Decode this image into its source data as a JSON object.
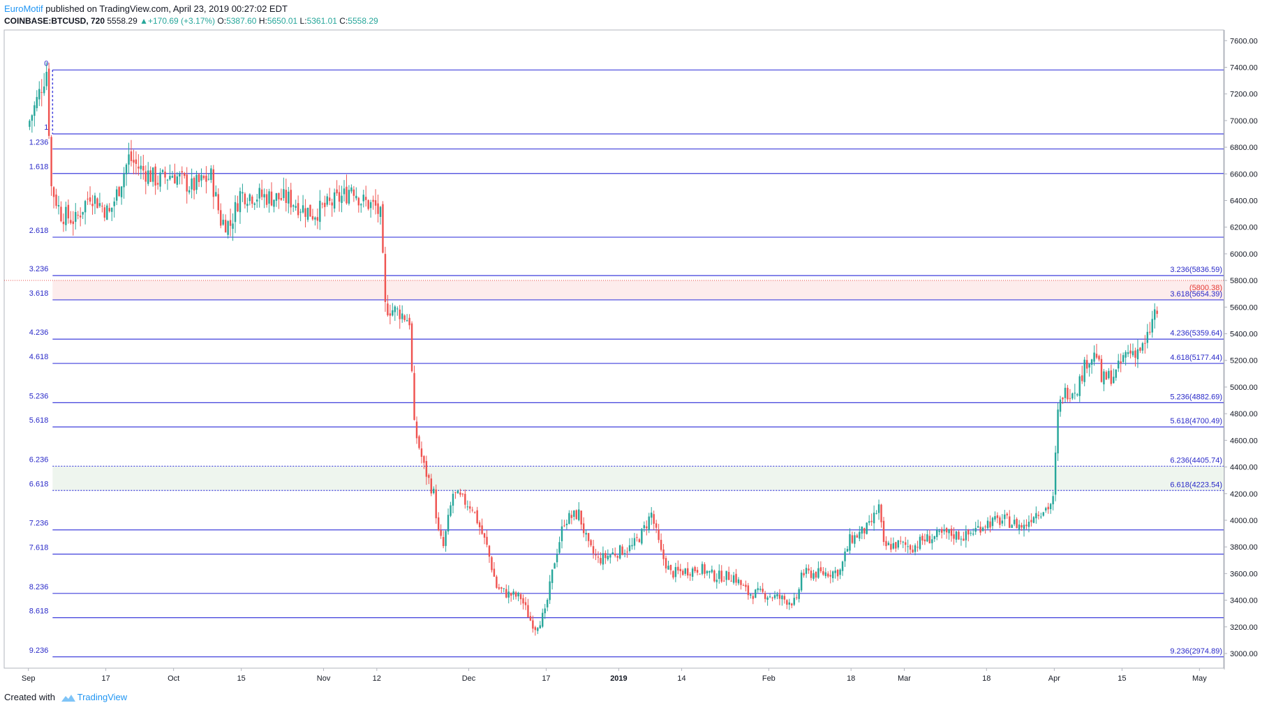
{
  "header": {
    "author": "EuroMotif",
    "published_text": " published on TradingView.com, April 23, 2019 00:27:02 EDT"
  },
  "ohlc": {
    "symbol": "COINBASE:BTCUSD, 720",
    "last": "5558.29",
    "change": "▲+170.69 (+3.17%)",
    "o_label": "O:",
    "o_val": "5387.60",
    "h_label": "H:",
    "h_val": "5650.01",
    "l_label": "L:",
    "l_val": "5361.01",
    "c_label": "C:",
    "c_val": "5558.29"
  },
  "footer": {
    "created_with": "Created with",
    "brand": "TradingView"
  },
  "colors": {
    "fib_line": "#3f3fdc",
    "fib_text": "#2929c8",
    "up": "#26a69a",
    "down": "#ef5350",
    "pink_zone": "#fdecec",
    "green_zone": "#eef5ee",
    "price_marker": "#e53935"
  },
  "chart_data": {
    "type": "candlestick",
    "title": "COINBASE:BTCUSD, 720",
    "y_axis": {
      "min": 2900,
      "max": 7600,
      "side": "right",
      "ticks": [
        3000,
        3200,
        3400,
        3600,
        3800,
        4000,
        4200,
        4400,
        4600,
        4800,
        5000,
        5200,
        5400,
        5600,
        5800,
        6000,
        6200,
        6400,
        6600,
        6800,
        7000,
        7200,
        7400,
        7600
      ]
    },
    "x_axis": {
      "start": "2018-09-01",
      "end": "2019-05-06",
      "ticks": [
        {
          "label": "Sep",
          "date": "2018-09-01"
        },
        {
          "label": "17",
          "date": "2018-09-17"
        },
        {
          "label": "Oct",
          "date": "2018-10-01"
        },
        {
          "label": "15",
          "date": "2018-10-15"
        },
        {
          "label": "Nov",
          "date": "2018-11-01"
        },
        {
          "label": "12",
          "date": "2018-11-12"
        },
        {
          "label": "Dec",
          "date": "2018-12-01"
        },
        {
          "label": "17",
          "date": "2018-12-17"
        },
        {
          "label": "2019",
          "date": "2019-01-01",
          "bold": true
        },
        {
          "label": "14",
          "date": "2019-01-14"
        },
        {
          "label": "Feb",
          "date": "2019-02-01"
        },
        {
          "label": "18",
          "date": "2019-02-18"
        },
        {
          "label": "Mar",
          "date": "2019-03-01"
        },
        {
          "label": "18",
          "date": "2019-03-18"
        },
        {
          "label": "Apr",
          "date": "2019-04-01"
        },
        {
          "label": "15",
          "date": "2019-04-15"
        },
        {
          "label": "May",
          "date": "2019-05-01"
        }
      ]
    },
    "fib_levels": [
      {
        "ratio": "0",
        "price": 7380,
        "right_label": ""
      },
      {
        "ratio": "1",
        "price": 6900,
        "right_label": ""
      },
      {
        "ratio": "1.236",
        "price": 6787,
        "right_label": ""
      },
      {
        "ratio": "1.618",
        "price": 6603,
        "right_label": ""
      },
      {
        "ratio": "2.618",
        "price": 6125,
        "right_label": ""
      },
      {
        "ratio": "3.236",
        "price": 5836.59,
        "right_label": "3.236(5836.59)"
      },
      {
        "ratio": "3.618",
        "price": 5654.39,
        "right_label": "3.618(5654.39)"
      },
      {
        "ratio": "4.236",
        "price": 5359.64,
        "right_label": "4.236(5359.64)"
      },
      {
        "ratio": "4.618",
        "price": 5177.44,
        "right_label": "4.618(5177.44)"
      },
      {
        "ratio": "5.236",
        "price": 4882.69,
        "right_label": "5.236(4882.69)"
      },
      {
        "ratio": "5.618",
        "price": 4700.49,
        "right_label": "5.618(4700.49)"
      },
      {
        "ratio": "6.236",
        "price": 4405.74,
        "right_label": "6.236(4405.74)",
        "dashed": true
      },
      {
        "ratio": "6.618",
        "price": 4223.54,
        "right_label": "6.618(4223.54)",
        "dashed": true
      },
      {
        "ratio": "7.236",
        "price": 3928,
        "right_label": ""
      },
      {
        "ratio": "7.618",
        "price": 3746,
        "right_label": ""
      },
      {
        "ratio": "8.236",
        "price": 3451,
        "right_label": ""
      },
      {
        "ratio": "8.618",
        "price": 3269,
        "right_label": ""
      },
      {
        "ratio": "9.236",
        "price": 2974.89,
        "right_label": "9.236(2974.89)"
      }
    ],
    "zones": [
      {
        "from": 5654.39,
        "to": 5800.38,
        "color": "pink",
        "start": "2018-09-06"
      },
      {
        "from": 4223.54,
        "to": 4405.74,
        "color": "green",
        "start": "2018-09-06"
      }
    ],
    "price_marker": {
      "price": 5800.38,
      "label": "(5800.38)"
    },
    "price_path": [
      [
        "2018-09-01",
        6950
      ],
      [
        "2018-09-03",
        7150
      ],
      [
        "2018-09-05",
        7380
      ],
      [
        "2018-09-06",
        6500
      ],
      [
        "2018-09-08",
        6300
      ],
      [
        "2018-09-11",
        6250
      ],
      [
        "2018-09-14",
        6450
      ],
      [
        "2018-09-18",
        6300
      ],
      [
        "2018-09-20",
        6500
      ],
      [
        "2018-09-22",
        6720
      ],
      [
        "2018-09-24",
        6650
      ],
      [
        "2018-09-28",
        6550
      ],
      [
        "2018-10-01",
        6600
      ],
      [
        "2018-10-05",
        6500
      ],
      [
        "2018-10-09",
        6580
      ],
      [
        "2018-10-11",
        6250
      ],
      [
        "2018-10-13",
        6220
      ],
      [
        "2018-10-15",
        6450
      ],
      [
        "2018-10-20",
        6430
      ],
      [
        "2018-10-25",
        6410
      ],
      [
        "2018-10-30",
        6300
      ],
      [
        "2018-11-03",
        6380
      ],
      [
        "2018-11-06",
        6450
      ],
      [
        "2018-11-07",
        6520
      ],
      [
        "2018-11-09",
        6400
      ],
      [
        "2018-11-12",
        6350
      ],
      [
        "2018-11-13",
        6280
      ],
      [
        "2018-11-14",
        5600
      ],
      [
        "2018-11-17",
        5560
      ],
      [
        "2018-11-19",
        5500
      ],
      [
        "2018-11-20",
        4700
      ],
      [
        "2018-11-22",
        4400
      ],
      [
        "2018-11-24",
        4200
      ],
      [
        "2018-11-25",
        3900
      ],
      [
        "2018-11-26",
        3800
      ],
      [
        "2018-11-28",
        4200
      ],
      [
        "2018-11-30",
        4150
      ],
      [
        "2018-12-02",
        4100
      ],
      [
        "2018-12-05",
        3800
      ],
      [
        "2018-12-07",
        3500
      ],
      [
        "2018-12-09",
        3450
      ],
      [
        "2018-12-12",
        3420
      ],
      [
        "2018-12-14",
        3250
      ],
      [
        "2018-12-15",
        3200
      ],
      [
        "2018-12-17",
        3300
      ],
      [
        "2018-12-19",
        3700
      ],
      [
        "2018-12-21",
        4000
      ],
      [
        "2018-12-24",
        4050
      ],
      [
        "2018-12-26",
        3800
      ],
      [
        "2018-12-28",
        3700
      ],
      [
        "2018-12-31",
        3750
      ],
      [
        "2019-01-04",
        3800
      ],
      [
        "2019-01-06",
        3900
      ],
      [
        "2019-01-08",
        4050
      ],
      [
        "2019-01-10",
        3750
      ],
      [
        "2019-01-12",
        3600
      ],
      [
        "2019-01-15",
        3620
      ],
      [
        "2019-01-18",
        3640
      ],
      [
        "2019-01-21",
        3580
      ],
      [
        "2019-01-25",
        3580
      ],
      [
        "2019-01-28",
        3450
      ],
      [
        "2019-01-31",
        3450
      ],
      [
        "2019-02-03",
        3420
      ],
      [
        "2019-02-07",
        3380
      ],
      [
        "2019-02-08",
        3600
      ],
      [
        "2019-02-12",
        3600
      ],
      [
        "2019-02-16",
        3620
      ],
      [
        "2019-02-18",
        3850
      ],
      [
        "2019-02-22",
        3950
      ],
      [
        "2019-02-24",
        4100
      ],
      [
        "2019-02-25",
        3800
      ],
      [
        "2019-02-28",
        3820
      ],
      [
        "2019-03-03",
        3800
      ],
      [
        "2019-03-05",
        3850
      ],
      [
        "2019-03-10",
        3900
      ],
      [
        "2019-03-14",
        3880
      ],
      [
        "2019-03-18",
        3980
      ],
      [
        "2019-03-22",
        4000
      ],
      [
        "2019-03-26",
        3950
      ],
      [
        "2019-03-28",
        4050
      ],
      [
        "2019-03-31",
        4100
      ],
      [
        "2019-04-01",
        4150
      ],
      [
        "2019-04-02",
        4800
      ],
      [
        "2019-04-03",
        4950
      ],
      [
        "2019-04-06",
        5000
      ],
      [
        "2019-04-08",
        5200
      ],
      [
        "2019-04-10",
        5250
      ],
      [
        "2019-04-11",
        5050
      ],
      [
        "2019-04-14",
        5100
      ],
      [
        "2019-04-16",
        5250
      ],
      [
        "2019-04-20",
        5300
      ],
      [
        "2019-04-22",
        5560
      ]
    ]
  }
}
